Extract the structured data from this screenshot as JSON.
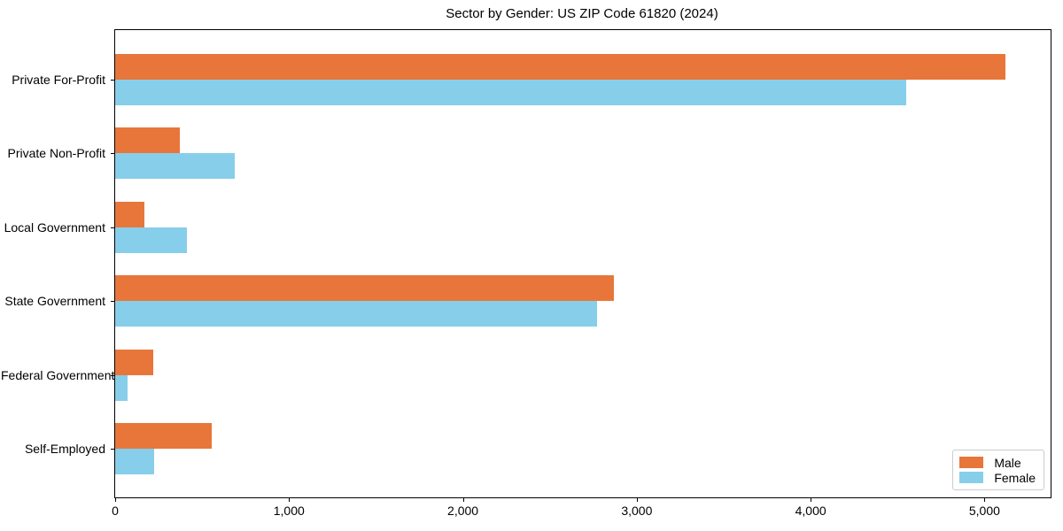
{
  "chart_data": {
    "type": "bar",
    "orientation": "horizontal",
    "title": "Sector by Gender: US ZIP Code 61820 (2024)",
    "categories": [
      "Private For-Profit",
      "Private Non-Profit",
      "Local Government",
      "State Government",
      "Federal Government",
      "Self-Employed"
    ],
    "series": [
      {
        "name": "Male",
        "color": "#e8763a",
        "values": [
          5120,
          370,
          170,
          2870,
          220,
          555
        ]
      },
      {
        "name": "Female",
        "color": "#87ceeb",
        "values": [
          4550,
          690,
          415,
          2770,
          70,
          225
        ]
      }
    ],
    "xlabel": "",
    "ylabel": "",
    "xlim": [
      0,
      5380
    ],
    "xticks": [
      0,
      1000,
      2000,
      3000,
      4000,
      5000
    ],
    "xtick_labels": [
      "0",
      "1,000",
      "2,000",
      "3,000",
      "4,000",
      "5,000"
    ],
    "grid": false,
    "legend_position": "lower right"
  }
}
